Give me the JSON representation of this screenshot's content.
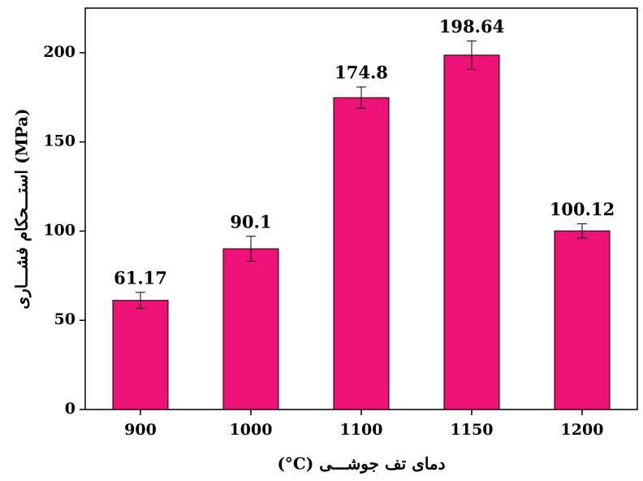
{
  "chart_data": {
    "type": "bar",
    "x_label": "(°C) دمای تف جوشـــی",
    "y_label": "استـــحکام فشـــاری (MPa)",
    "categories": [
      "900",
      "1000",
      "1100",
      "1150",
      "1200"
    ],
    "values": [
      61.17,
      90.1,
      174.8,
      198.64,
      100.12
    ],
    "errors": [
      4.5,
      7,
      6,
      8,
      4
    ],
    "color": "#ee1177",
    "ylim": [
      0,
      225
    ],
    "yticks": [
      0,
      50,
      100,
      150,
      200
    ],
    "grid": false
  }
}
